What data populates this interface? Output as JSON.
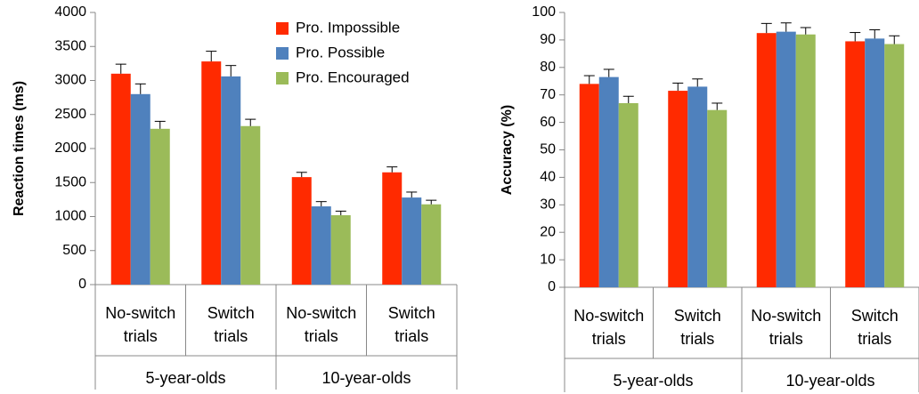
{
  "chart_data": [
    {
      "type": "bar",
      "title": "",
      "ylabel": "Reaction times (ms)",
      "ylim": [
        0,
        4000
      ],
      "yticks": [
        0,
        500,
        1000,
        1500,
        2000,
        2500,
        3000,
        3500,
        4000
      ],
      "categories": [
        {
          "line1": "No-switch",
          "line2": "trials"
        },
        {
          "line1": "Switch",
          "line2": "trials"
        },
        {
          "line1": "No-switch",
          "line2": "trials"
        },
        {
          "line1": "Switch",
          "line2": "trials"
        }
      ],
      "groups": [
        "5-year-olds",
        "10-year-olds"
      ],
      "legend_position": "top-right",
      "grid": false,
      "series": [
        {
          "name": "Pro. Impossible",
          "color": "#ff2a00",
          "values": [
            3100,
            3280,
            1580,
            1650
          ],
          "errors": [
            140,
            150,
            70,
            80
          ]
        },
        {
          "name": "Pro. Possible",
          "color": "#4f81bd",
          "values": [
            2800,
            3060,
            1150,
            1280
          ],
          "errors": [
            150,
            160,
            70,
            80
          ]
        },
        {
          "name": "Pro. Encouraged",
          "color": "#9bbb59",
          "values": [
            2290,
            2330,
            1020,
            1180
          ],
          "errors": [
            110,
            100,
            60,
            60
          ]
        }
      ]
    },
    {
      "type": "bar",
      "title": "",
      "ylabel": "Accuracy (%)",
      "ylim": [
        0,
        100
      ],
      "yticks": [
        0,
        10,
        20,
        30,
        40,
        50,
        60,
        70,
        80,
        90,
        100
      ],
      "categories": [
        {
          "line1": "No-switch",
          "line2": "trials"
        },
        {
          "line1": "Switch",
          "line2": "trials"
        },
        {
          "line1": "No-switch",
          "line2": "trials"
        },
        {
          "line1": "Switch",
          "line2": "trials"
        }
      ],
      "groups": [
        "5-year-olds",
        "10-year-olds"
      ],
      "grid": false,
      "series": [
        {
          "name": "Pro. Impossible",
          "color": "#ff2a00",
          "values": [
            74,
            71.5,
            92.5,
            89.5
          ],
          "errors": [
            3,
            2.8,
            3.5,
            3.2
          ]
        },
        {
          "name": "Pro. Possible",
          "color": "#4f81bd",
          "values": [
            76.5,
            73,
            93,
            90.5
          ],
          "errors": [
            2.8,
            2.8,
            3.2,
            3.2
          ]
        },
        {
          "name": "Pro. Encouraged",
          "color": "#9bbb59",
          "values": [
            67,
            64.5,
            92,
            88.5
          ],
          "errors": [
            2.5,
            2.5,
            2.5,
            3
          ]
        }
      ]
    }
  ]
}
